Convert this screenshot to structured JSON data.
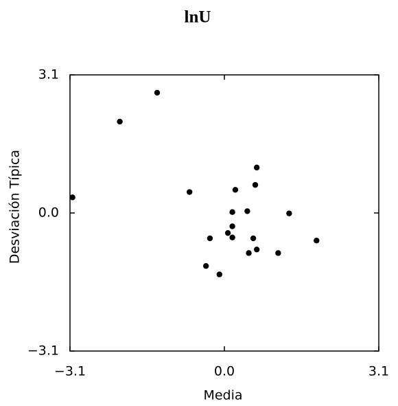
{
  "chart_data": {
    "type": "scatter",
    "title": "lnU",
    "xlabel": "Media",
    "ylabel": "Desviación Típica",
    "xlim": [
      -3.1,
      3.1
    ],
    "ylim": [
      -3.1,
      3.1
    ],
    "xticks": [
      -3.1,
      0.0,
      3.1
    ],
    "yticks": [
      -3.1,
      0.0,
      3.1
    ],
    "xtick_labels": [
      "−3.1",
      "0.0",
      "3.1"
    ],
    "ytick_labels": [
      "−3.1",
      "0.0",
      "3.1"
    ],
    "grid": false,
    "marker_color": "#000000",
    "points": [
      {
        "x": -3.05,
        "y": 0.35
      },
      {
        "x": -2.1,
        "y": 2.05
      },
      {
        "x": -1.35,
        "y": 2.7
      },
      {
        "x": -0.7,
        "y": 0.47
      },
      {
        "x": 0.65,
        "y": 1.02
      },
      {
        "x": 0.22,
        "y": 0.52
      },
      {
        "x": 0.62,
        "y": 0.63
      },
      {
        "x": 0.16,
        "y": 0.02
      },
      {
        "x": 0.46,
        "y": 0.04
      },
      {
        "x": 1.3,
        "y": -0.01
      },
      {
        "x": 0.16,
        "y": -0.3
      },
      {
        "x": 0.07,
        "y": -0.45
      },
      {
        "x": -0.29,
        "y": -0.57
      },
      {
        "x": 0.16,
        "y": -0.55
      },
      {
        "x": 0.58,
        "y": -0.57
      },
      {
        "x": 1.85,
        "y": -0.62
      },
      {
        "x": 0.65,
        "y": -0.82
      },
      {
        "x": 0.49,
        "y": -0.9
      },
      {
        "x": 1.08,
        "y": -0.9
      },
      {
        "x": -0.37,
        "y": -1.19
      },
      {
        "x": -0.1,
        "y": -1.38
      }
    ]
  }
}
